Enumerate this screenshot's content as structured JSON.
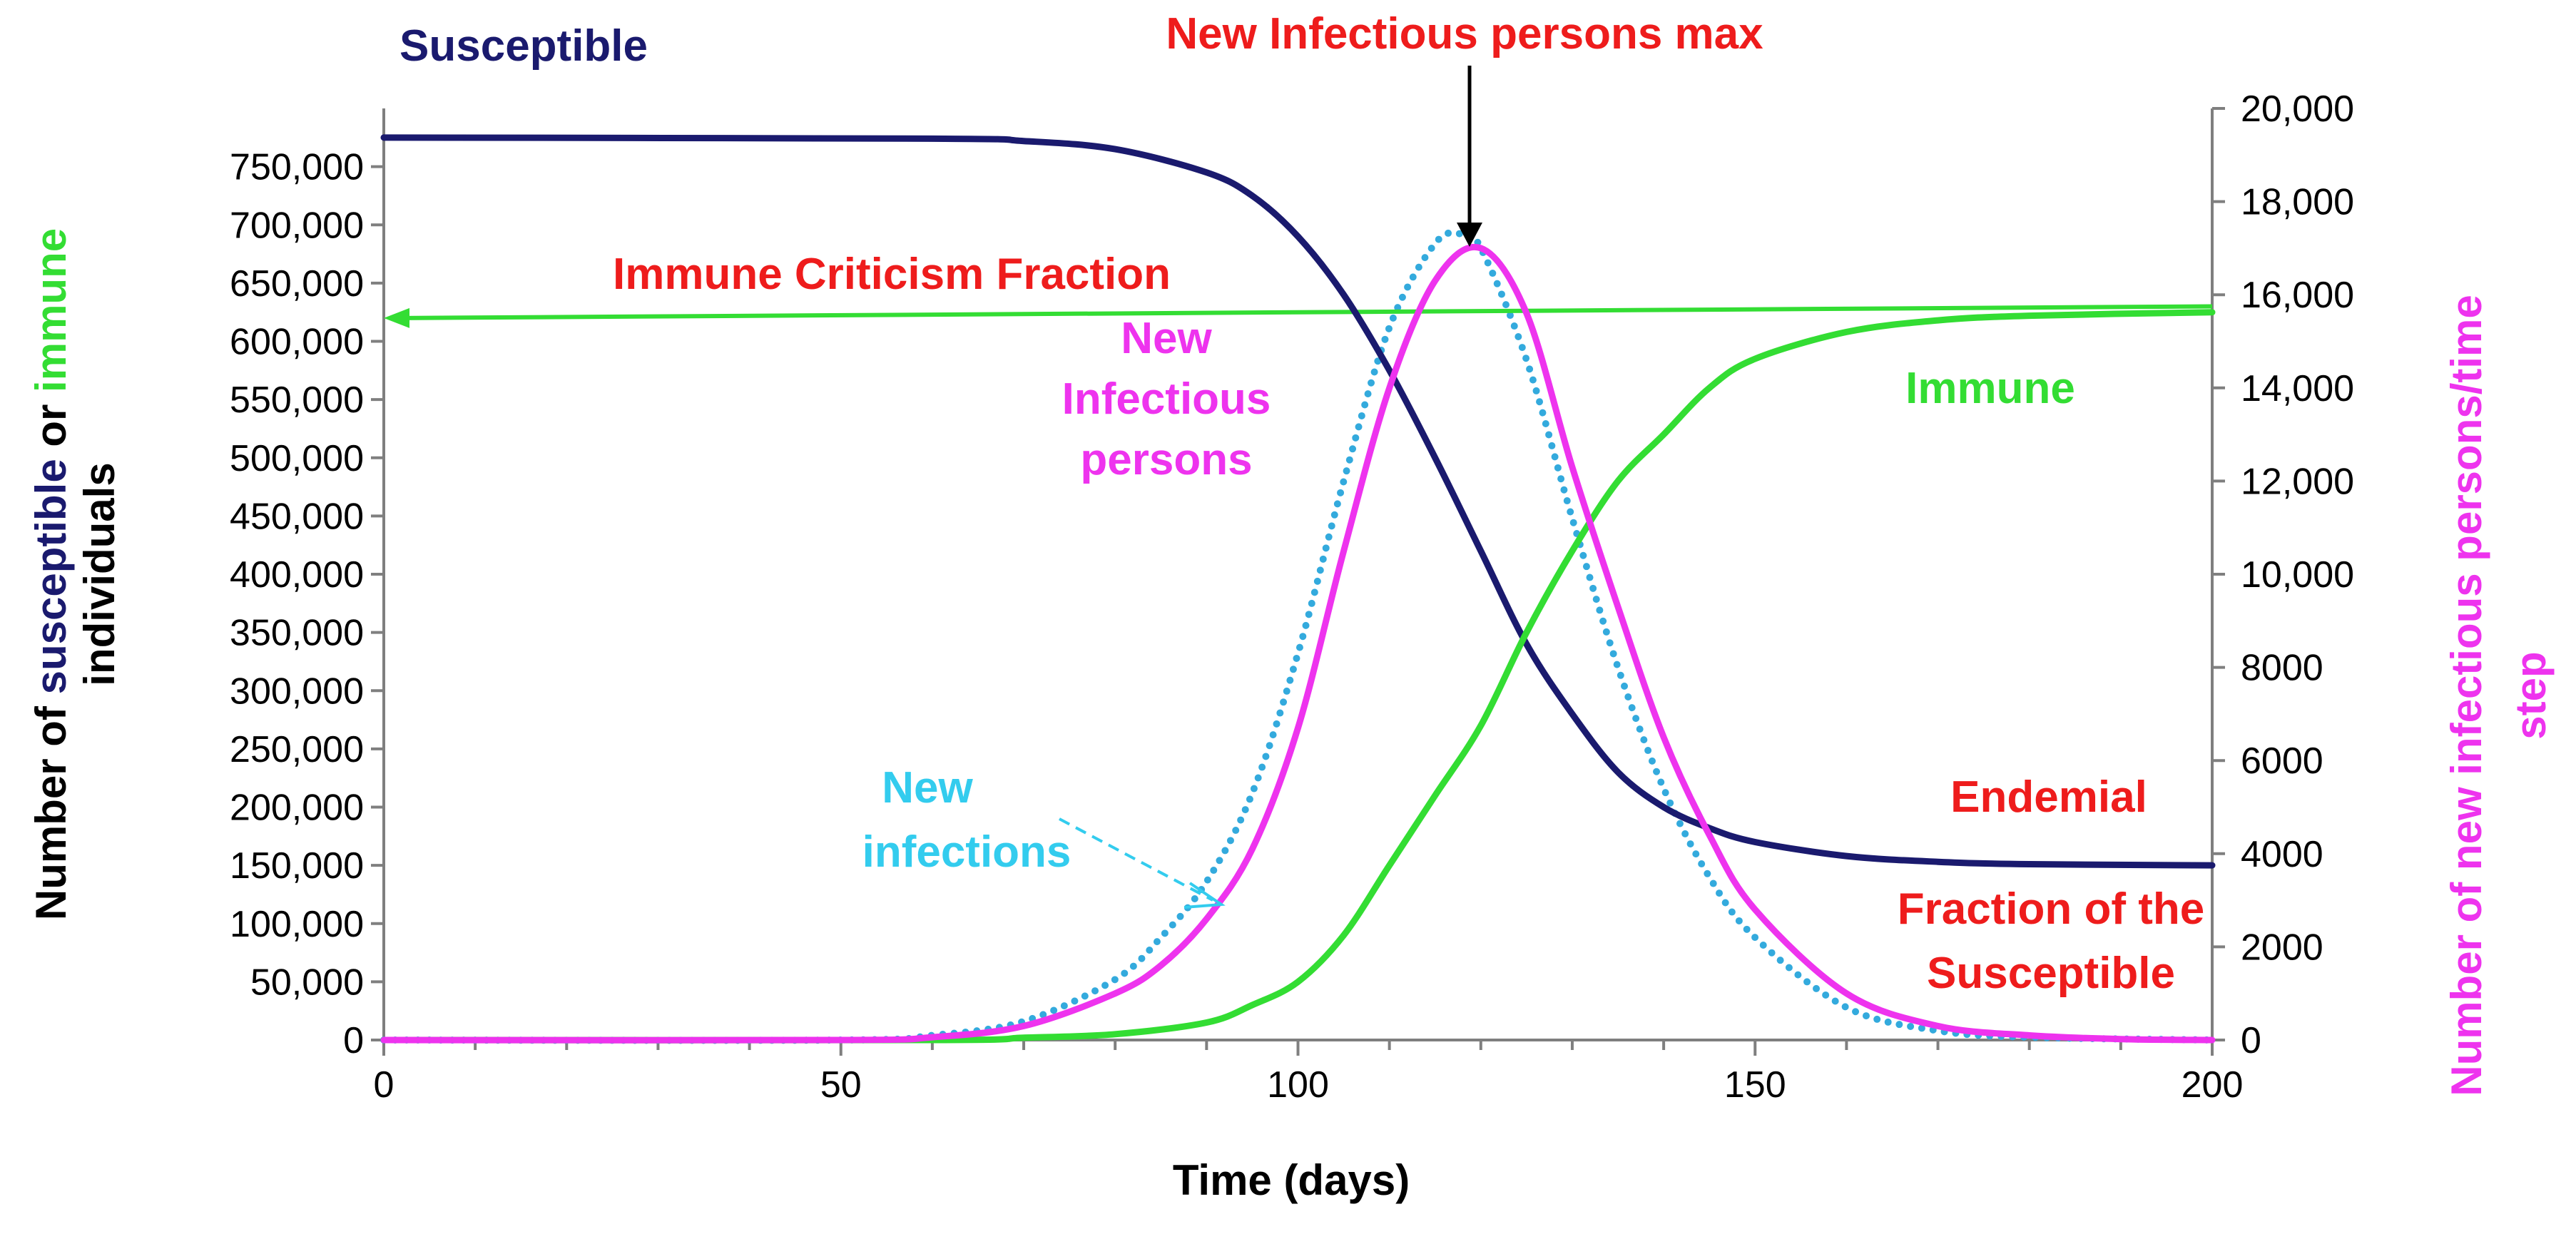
{
  "chart_data": {
    "type": "line",
    "x_range": [
      0,
      200
    ],
    "y_left_range": [
      0,
      800000
    ],
    "y_right_range": [
      0,
      20000
    ],
    "x_ticks": [
      0,
      50,
      100,
      150,
      200
    ],
    "x_tick_labels": [
      "0",
      "50",
      "100",
      "150",
      "200"
    ],
    "y_left_ticks": [
      0,
      50000,
      100000,
      150000,
      200000,
      250000,
      300000,
      350000,
      400000,
      450000,
      500000,
      550000,
      600000,
      650000,
      700000,
      750000
    ],
    "y_left_tick_labels": [
      "0",
      "50,000",
      "100,000",
      "150,000",
      "200,000",
      "250,000",
      "300,000",
      "350,000",
      "400,000",
      "450,000",
      "500,000",
      "550,000",
      "600,000",
      "650,000",
      "700,000",
      "750,000"
    ],
    "y_right_ticks": [
      0,
      2000,
      4000,
      6000,
      8000,
      10000,
      12000,
      14000,
      16000,
      18000,
      20000
    ],
    "y_right_tick_labels": [
      "0",
      "2000",
      "4000",
      "6000",
      "8000",
      "10,000",
      "12,000",
      "14,000",
      "16,000",
      "18,000",
      "20,000"
    ],
    "xlabel": "Time (days)",
    "ylabel_left": {
      "part1": "Number of ",
      "part2": "susceptible",
      "part3": " or ",
      "part4": "immune",
      "line2": "individuals"
    },
    "ylabel_right": {
      "line1": "Number of new infectious persons/time",
      "line2": "step"
    },
    "series": [
      {
        "name": "Susceptible",
        "axis": "left",
        "color": "#1a1a6e",
        "style": "solid",
        "points": [
          [
            0,
            775000
          ],
          [
            60,
            774000
          ],
          [
            70,
            772000
          ],
          [
            80,
            765000
          ],
          [
            90,
            745000
          ],
          [
            95,
            725000
          ],
          [
            100,
            690000
          ],
          [
            105,
            640000
          ],
          [
            110,
            575000
          ],
          [
            115,
            500000
          ],
          [
            120,
            420000
          ],
          [
            125,
            340000
          ],
          [
            130,
            280000
          ],
          [
            135,
            230000
          ],
          [
            140,
            200000
          ],
          [
            145,
            182000
          ],
          [
            150,
            170000
          ],
          [
            160,
            158000
          ],
          [
            170,
            153000
          ],
          [
            180,
            151000
          ],
          [
            200,
            150000
          ]
        ]
      },
      {
        "name": "Immune",
        "axis": "left",
        "color": "#33dd33",
        "style": "solid",
        "points": [
          [
            0,
            0
          ],
          [
            60,
            0
          ],
          [
            70,
            2000
          ],
          [
            80,
            5000
          ],
          [
            90,
            15000
          ],
          [
            95,
            30000
          ],
          [
            100,
            50000
          ],
          [
            105,
            90000
          ],
          [
            110,
            150000
          ],
          [
            115,
            210000
          ],
          [
            120,
            270000
          ],
          [
            125,
            350000
          ],
          [
            130,
            420000
          ],
          [
            135,
            480000
          ],
          [
            140,
            520000
          ],
          [
            145,
            560000
          ],
          [
            150,
            585000
          ],
          [
            160,
            608000
          ],
          [
            170,
            618000
          ],
          [
            180,
            622000
          ],
          [
            200,
            625000
          ]
        ]
      },
      {
        "name": "New Infectious persons",
        "axis": "right",
        "color": "#ee33ee",
        "style": "solid",
        "points": [
          [
            0,
            0
          ],
          [
            50,
            0
          ],
          [
            60,
            60
          ],
          [
            70,
            300
          ],
          [
            80,
            1000
          ],
          [
            85,
            1600
          ],
          [
            90,
            2600
          ],
          [
            95,
            4100
          ],
          [
            100,
            6700
          ],
          [
            105,
            10500
          ],
          [
            110,
            14000
          ],
          [
            115,
            16300
          ],
          [
            120,
            17000
          ],
          [
            125,
            15600
          ],
          [
            130,
            12300
          ],
          [
            135,
            9300
          ],
          [
            140,
            6500
          ],
          [
            145,
            4400
          ],
          [
            150,
            2800
          ],
          [
            160,
            1000
          ],
          [
            170,
            300
          ],
          [
            180,
            100
          ],
          [
            190,
            20
          ],
          [
            200,
            0
          ]
        ]
      },
      {
        "name": "New infections",
        "axis": "right",
        "color": "#33aadd",
        "style": "dotted",
        "points": [
          [
            0,
            0
          ],
          [
            50,
            0
          ],
          [
            60,
            100
          ],
          [
            70,
            400
          ],
          [
            80,
            1300
          ],
          [
            85,
            2200
          ],
          [
            90,
            3400
          ],
          [
            95,
            5300
          ],
          [
            100,
            8300
          ],
          [
            105,
            12000
          ],
          [
            110,
            15300
          ],
          [
            115,
            17100
          ],
          [
            118,
            17300
          ],
          [
            120,
            17000
          ],
          [
            125,
            14600
          ],
          [
            130,
            11200
          ],
          [
            135,
            8000
          ],
          [
            140,
            5400
          ],
          [
            145,
            3500
          ],
          [
            150,
            2200
          ],
          [
            160,
            700
          ],
          [
            170,
            200
          ],
          [
            180,
            60
          ],
          [
            200,
            0
          ]
        ]
      },
      {
        "name": "Immune Criticism Fraction",
        "axis": "left",
        "color": "#33dd33",
        "style": "arrow-line",
        "points": [
          [
            0,
            620000
          ],
          [
            200,
            630000
          ]
        ]
      }
    ],
    "annotations": {
      "susceptible": "Susceptible",
      "new_infectious_max": "New Infectious persons max",
      "immune_criticism": "Immune Criticism Fraction",
      "new_infectious_line1": "New",
      "new_infectious_line2": "Infectious",
      "new_infectious_line3": "persons",
      "immune": "Immune",
      "new_infections_line1": "New",
      "new_infections_line2": "infections",
      "endemial": "Endemial",
      "fraction_line1": "Fraction of the",
      "fraction_line2": "Susceptible"
    },
    "annotation_colors": {
      "red": "#ee1c1c",
      "navy": "#1a1a6e",
      "magenta": "#ee33ee",
      "green": "#33dd33",
      "cyan": "#33ccee",
      "black": "#000000"
    }
  }
}
